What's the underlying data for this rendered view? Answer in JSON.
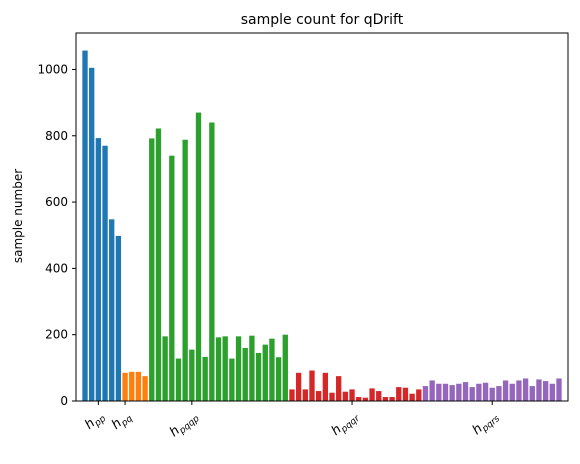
{
  "chart_data": {
    "type": "bar",
    "title": "sample count for qDrift",
    "xlabel": "",
    "ylabel": "sample number",
    "ylim": [
      0,
      1110
    ],
    "yticks": [
      0,
      200,
      400,
      600,
      800,
      1000
    ],
    "grid": false,
    "legend": "none",
    "series": [
      {
        "group": "h_pp",
        "color": "#1f77b4",
        "values": [
          1057,
          1005,
          793,
          770,
          548,
          498
        ]
      },
      {
        "group": "h_pq",
        "color": "#ff7f0e",
        "values": [
          85,
          88,
          88,
          75
        ]
      },
      {
        "group": "h_pqqp",
        "color": "#2ca02c",
        "values": [
          792,
          822,
          195,
          740,
          128,
          788,
          155,
          870,
          133,
          840,
          192,
          195,
          128,
          195,
          160,
          197,
          145,
          170,
          188,
          132,
          200
        ]
      },
      {
        "group": "h_pqqr",
        "color": "#d62728",
        "values": [
          35,
          85,
          35,
          92,
          30,
          85,
          25,
          75,
          28,
          35,
          12,
          10,
          38,
          30,
          12,
          12,
          42,
          40,
          22,
          35
        ]
      },
      {
        "group": "h_pqrs",
        "color": "#9467bd",
        "values": [
          45,
          62,
          52,
          52,
          48,
          52,
          57,
          42,
          52,
          55,
          40,
          45,
          62,
          52,
          62,
          68,
          45,
          65,
          60,
          52,
          68
        ]
      }
    ],
    "xticks": [
      {
        "base": "h",
        "sub": "pp",
        "index": 2
      },
      {
        "base": "h",
        "sub": "pq",
        "index": 6
      },
      {
        "base": "h",
        "sub": "pqqp",
        "index": 16
      },
      {
        "base": "h",
        "sub": "pqqr",
        "index": 40
      },
      {
        "base": "h",
        "sub": "pqrs",
        "index": 61
      }
    ]
  }
}
